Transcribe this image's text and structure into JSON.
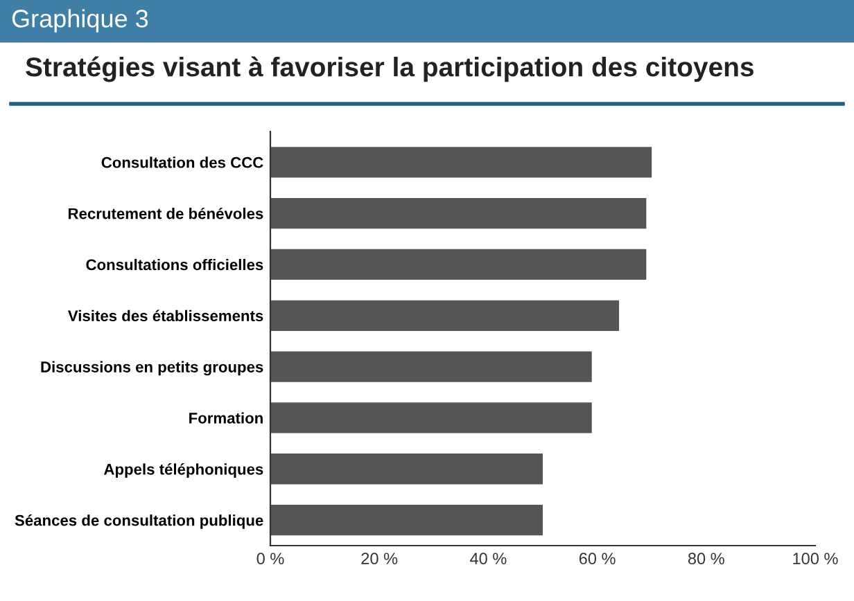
{
  "chart_data": {
    "type": "bar",
    "orientation": "horizontal",
    "title": "Graphique 3",
    "subtitle": "Stratégies visant à favoriser la participation des citoyens",
    "categories": [
      "Consultation des CCC",
      "Recrutement de bénévoles",
      "Consultations officielles",
      "Visites des établissements",
      "Discussions en petits groupes",
      "Formation",
      "Appels téléphoniques",
      "Séances de consultation publique"
    ],
    "values": [
      70,
      69,
      69,
      64,
      59,
      59,
      50,
      50
    ],
    "color": "#555555",
    "xlim": [
      0,
      100
    ],
    "xticks": [
      {
        "value": 0,
        "label": "0 %"
      },
      {
        "value": 20,
        "label": "20 %"
      },
      {
        "value": 40,
        "label": "40 %"
      },
      {
        "value": 60,
        "label": "60 %"
      },
      {
        "value": 80,
        "label": "80 %"
      },
      {
        "value": 100,
        "label": "100 %"
      }
    ],
    "grid": false
  }
}
